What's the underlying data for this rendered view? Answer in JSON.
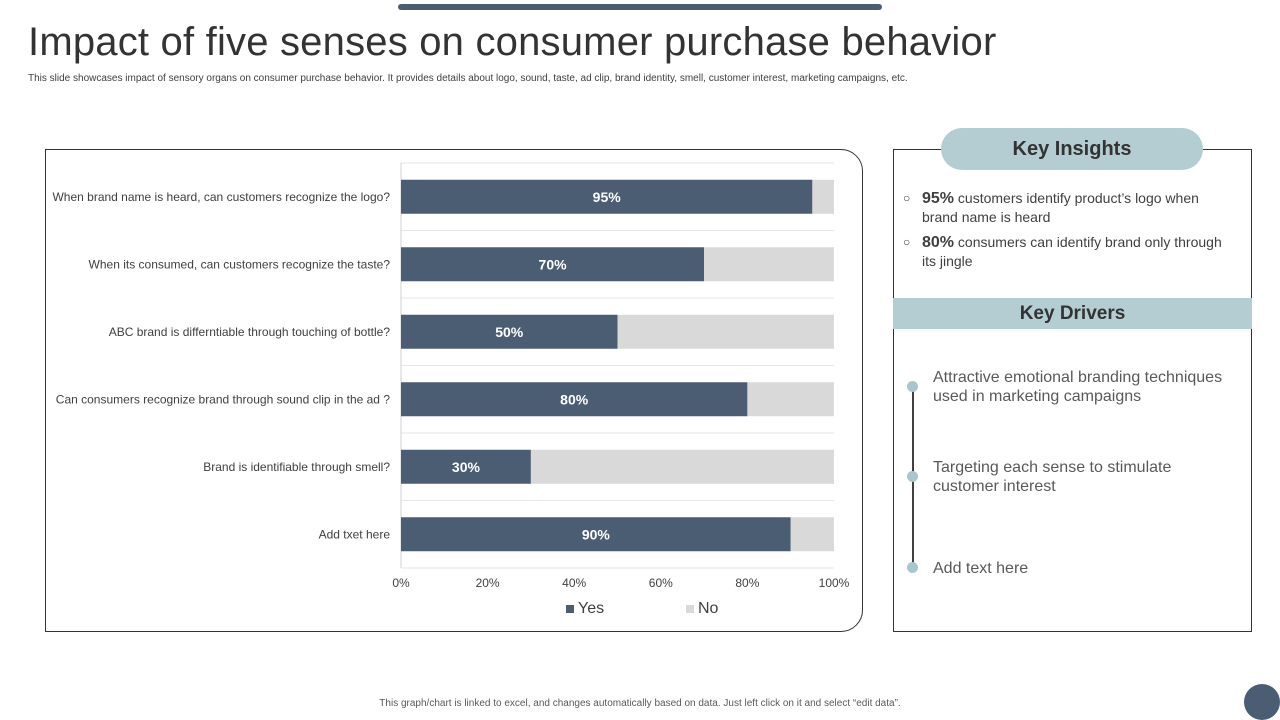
{
  "slide": {
    "title": "Impact of five senses on consumer purchase behavior",
    "subtitle": "This slide showcases impact of sensory organs on consumer purchase behavior. It provides details about logo, sound, taste, ad clip, brand identity, smell, customer interest, marketing campaigns, etc.",
    "footer": "This graph/chart is linked to excel, and changes automatically based on data. Just left click on it and select “edit data”."
  },
  "chart_data": {
    "type": "bar",
    "orientation": "horizontal",
    "stacked": true,
    "categories": [
      "When brand name is heard, can customers recognize the logo?",
      "When its consumed, can customers recognize the taste?",
      "ABC brand is differntiable through touching of bottle?",
      "Can consumers recognize brand through sound clip in the ad ?",
      "Brand is identifiable through smell?",
      "Add txet here"
    ],
    "series": [
      {
        "name": "Yes",
        "values": [
          95,
          70,
          50,
          80,
          30,
          90
        ],
        "color": "#4b5d73"
      },
      {
        "name": "No",
        "values": [
          5,
          30,
          50,
          20,
          70,
          10
        ],
        "color": "#d9d9d9"
      }
    ],
    "data_labels": [
      "95%",
      "70%",
      "50%",
      "80%",
      "30%",
      "90%"
    ],
    "xticks": [
      "0%",
      "20%",
      "40%",
      "60%",
      "80%",
      "100%"
    ],
    "xlim": [
      0,
      100
    ],
    "grid": true,
    "legend_position": "bottom"
  },
  "key_insights": {
    "heading": "Key Insights",
    "items": [
      {
        "bullet": "○",
        "value": "95%",
        "text": " customers identify product’s logo when brand name is heard"
      },
      {
        "bullet": "○",
        "value": "80%",
        "text": " consumers can identify brand only through its jingle"
      }
    ]
  },
  "key_drivers": {
    "heading": "Key Drivers",
    "items": [
      "Attractive emotional branding techniques used in marketing campaigns",
      "Targeting each sense to stimulate customer interest",
      "Add text here"
    ]
  },
  "colors": {
    "accent_dark": "#4b5d73",
    "accent_light": "#b3cdd3",
    "bar_no": "#d9d9d9"
  }
}
